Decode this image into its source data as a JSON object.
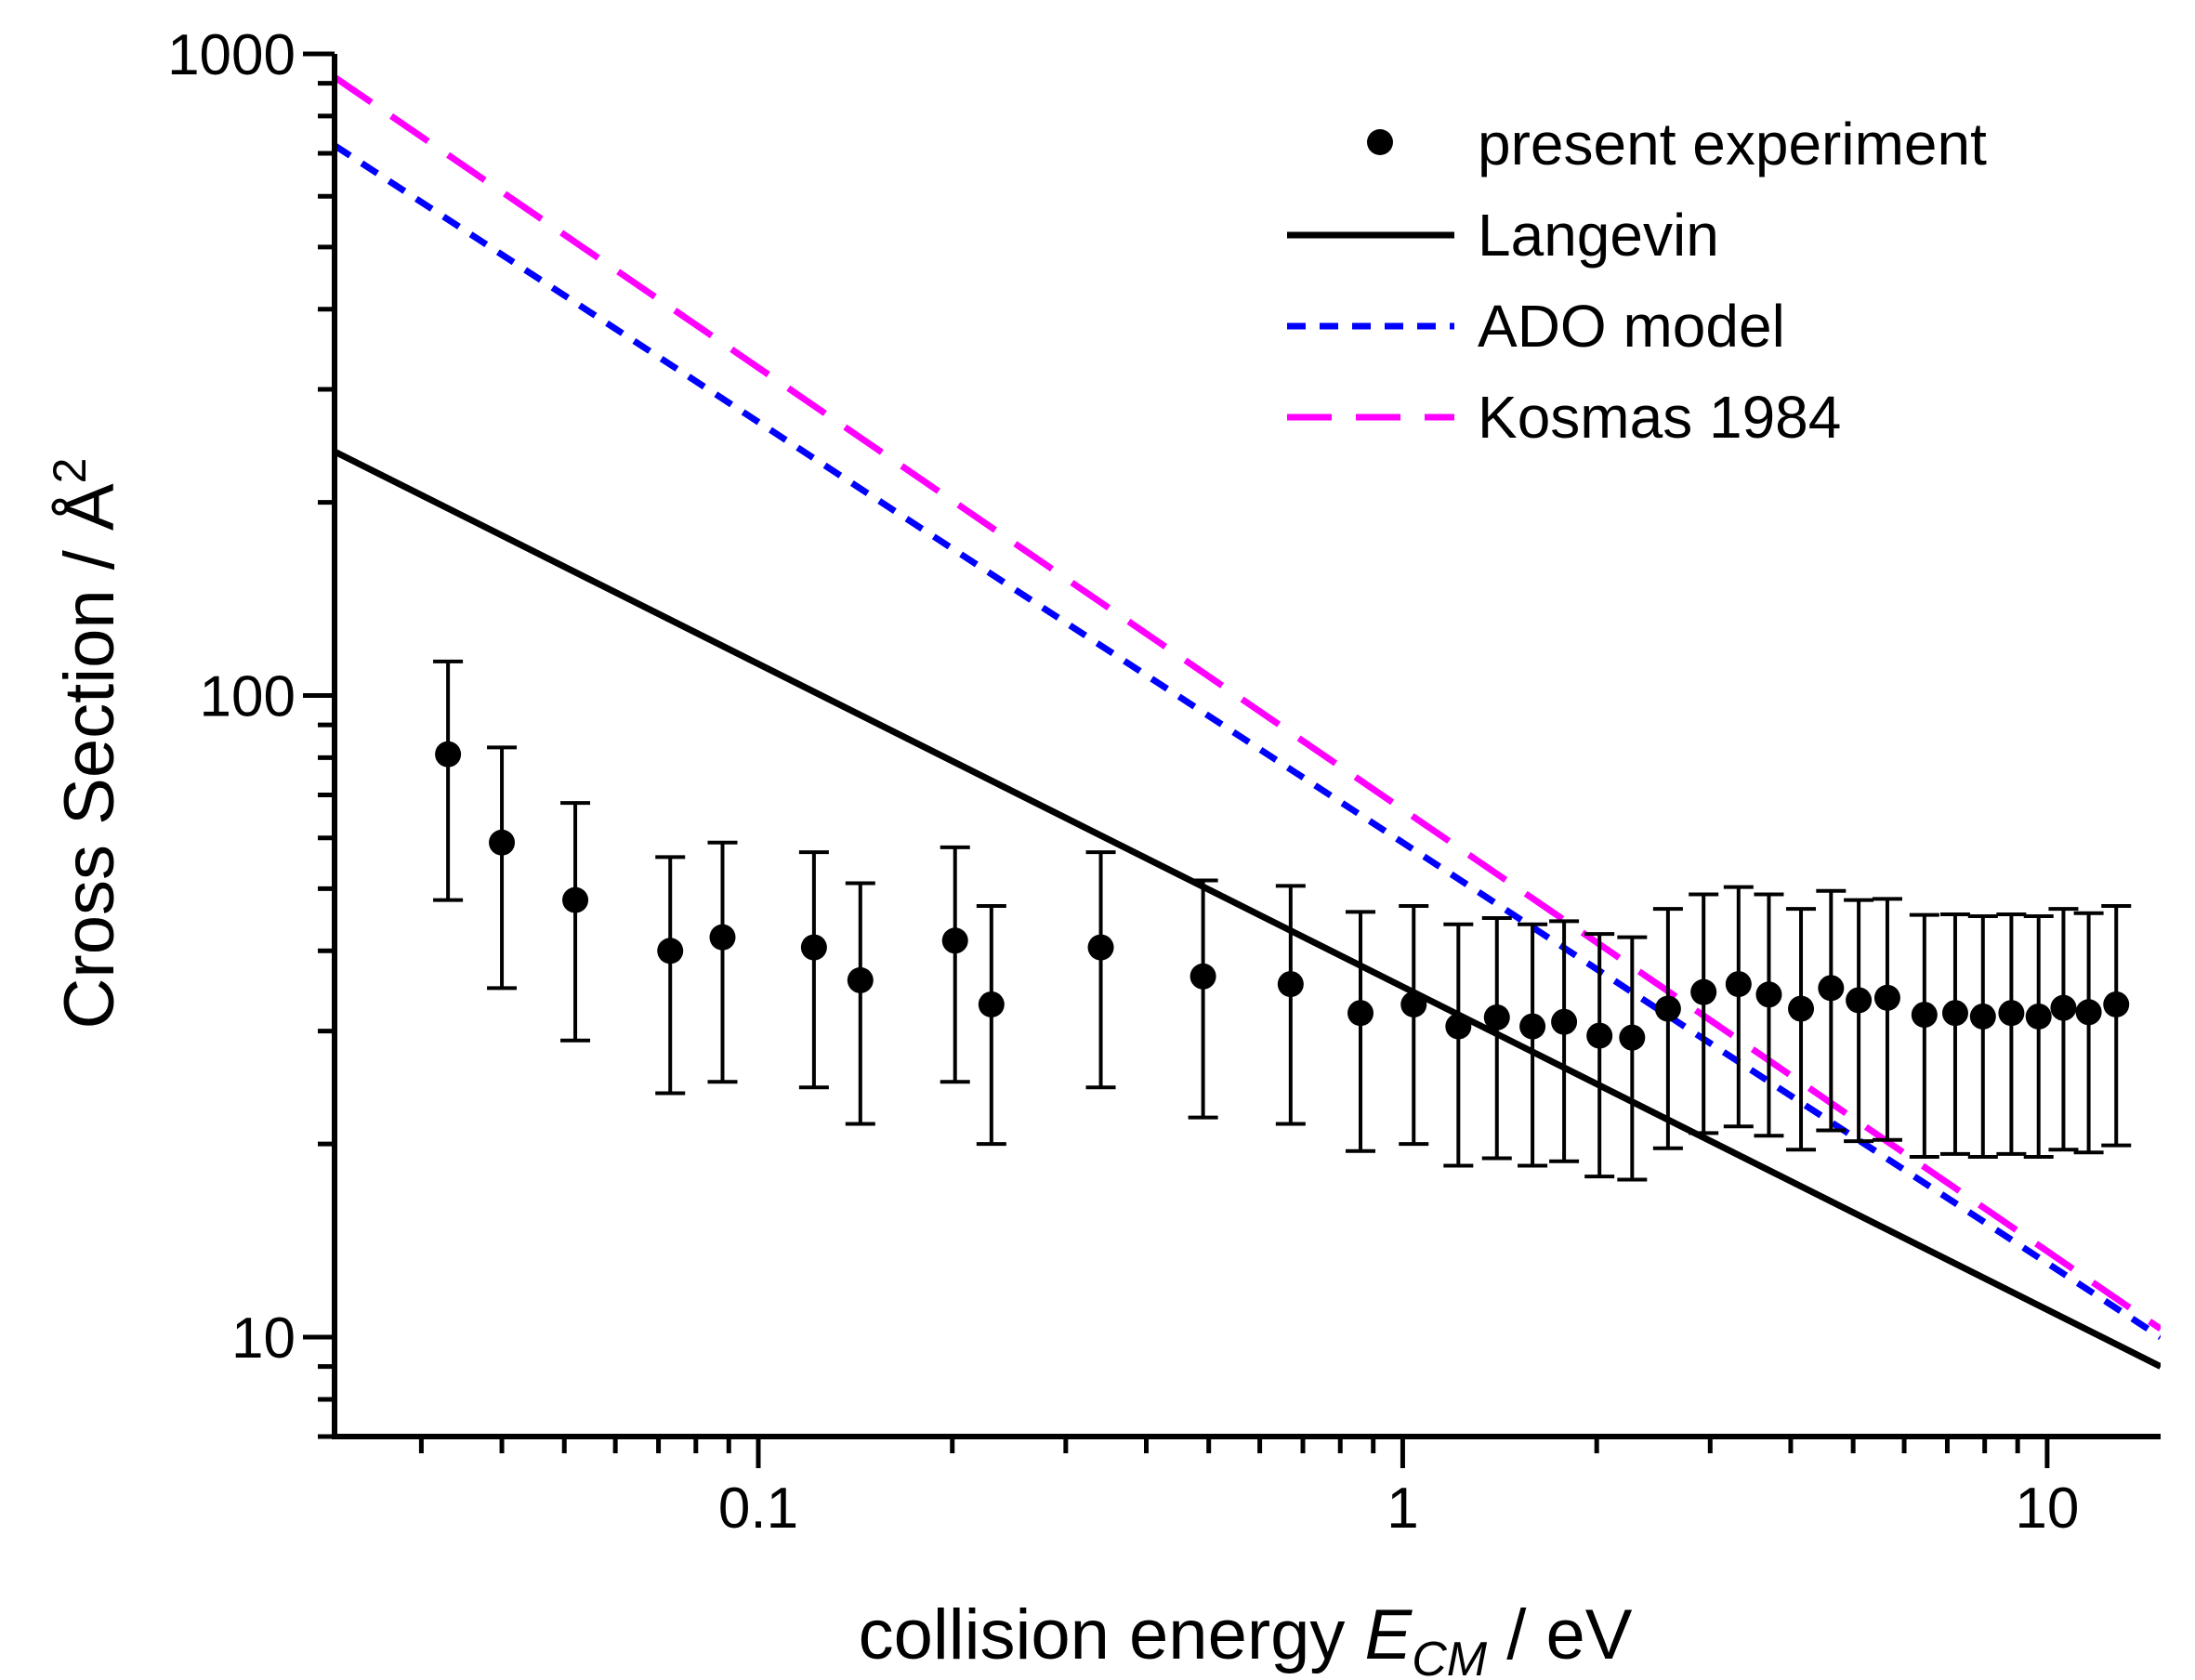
{
  "chart_data": {
    "type": "scatter",
    "title": "",
    "xscale": "log",
    "yscale": "log",
    "xlim": [
      0.022,
      15
    ],
    "ylim": [
      7,
      1000
    ],
    "xlabel": {
      "prefix": "collision energy ",
      "symbol": "E",
      "subscript": "CM",
      "suffix": " / eV"
    },
    "ylabel": {
      "text": "Cross Section / Å",
      "superscript": "2"
    },
    "x_ticks": [
      {
        "value": 0.1,
        "label": "0.1"
      },
      {
        "value": 1,
        "label": "1"
      },
      {
        "value": 10,
        "label": "10"
      }
    ],
    "y_ticks": [
      {
        "value": 10,
        "label": "10"
      },
      {
        "value": 100,
        "label": "100"
      },
      {
        "value": 1000,
        "label": "1000"
      }
    ],
    "legend": {
      "position": "top-right",
      "entries": [
        {
          "label": "present experiment",
          "kind": "marker",
          "color": "#000000"
        },
        {
          "label": "Langevin",
          "kind": "line",
          "color": "#000000",
          "dash": "solid"
        },
        {
          "label": "ADO model",
          "kind": "line",
          "color": "#0000ff",
          "dash": "short"
        },
        {
          "label": "Kosmas 1984",
          "kind": "line",
          "color": "#ff00ff",
          "dash": "long"
        }
      ]
    },
    "series": [
      {
        "name": "present experiment",
        "kind": "points_with_error",
        "color": "#000000",
        "points": [
          {
            "x": 0.033,
            "y": 81,
            "ylo": 48,
            "yhi": 113
          },
          {
            "x": 0.04,
            "y": 59,
            "ylo": 35,
            "yhi": 83
          },
          {
            "x": 0.052,
            "y": 48,
            "ylo": 29,
            "yhi": 68
          },
          {
            "x": 0.073,
            "y": 40,
            "ylo": 24,
            "yhi": 56
          },
          {
            "x": 0.088,
            "y": 42,
            "ylo": 25,
            "yhi": 59
          },
          {
            "x": 0.122,
            "y": 40.5,
            "ylo": 24.5,
            "yhi": 57
          },
          {
            "x": 0.144,
            "y": 36,
            "ylo": 21.5,
            "yhi": 51
          },
          {
            "x": 0.202,
            "y": 41.5,
            "ylo": 25,
            "yhi": 58
          },
          {
            "x": 0.23,
            "y": 33,
            "ylo": 20,
            "yhi": 47
          },
          {
            "x": 0.34,
            "y": 40.5,
            "ylo": 24.5,
            "yhi": 57
          },
          {
            "x": 0.49,
            "y": 36.5,
            "ylo": 22,
            "yhi": 51.5
          },
          {
            "x": 0.67,
            "y": 35.5,
            "ylo": 21.5,
            "yhi": 50.5
          },
          {
            "x": 0.86,
            "y": 32,
            "ylo": 19.5,
            "yhi": 46
          },
          {
            "x": 1.04,
            "y": 33,
            "ylo": 20,
            "yhi": 47
          },
          {
            "x": 1.22,
            "y": 30.5,
            "ylo": 18.5,
            "yhi": 44
          },
          {
            "x": 1.4,
            "y": 31.5,
            "ylo": 19,
            "yhi": 45
          },
          {
            "x": 1.59,
            "y": 30.5,
            "ylo": 18.5,
            "yhi": 44
          },
          {
            "x": 1.78,
            "y": 31,
            "ylo": 18.8,
            "yhi": 44.5
          },
          {
            "x": 2.02,
            "y": 29.5,
            "ylo": 17.8,
            "yhi": 42.5
          },
          {
            "x": 2.27,
            "y": 29.3,
            "ylo": 17.6,
            "yhi": 42
          },
          {
            "x": 2.58,
            "y": 32.5,
            "ylo": 19.7,
            "yhi": 46.5
          },
          {
            "x": 2.93,
            "y": 34.5,
            "ylo": 20.8,
            "yhi": 49
          },
          {
            "x": 3.32,
            "y": 35.5,
            "ylo": 21.3,
            "yhi": 50.3
          },
          {
            "x": 3.7,
            "y": 34.2,
            "ylo": 20.6,
            "yhi": 49
          },
          {
            "x": 4.15,
            "y": 32.5,
            "ylo": 19.6,
            "yhi": 46.5
          },
          {
            "x": 4.62,
            "y": 35,
            "ylo": 21,
            "yhi": 49.6
          },
          {
            "x": 5.1,
            "y": 33.5,
            "ylo": 20.2,
            "yhi": 48
          },
          {
            "x": 5.65,
            "y": 33.8,
            "ylo": 20.3,
            "yhi": 48.2
          },
          {
            "x": 6.45,
            "y": 31.8,
            "ylo": 19.1,
            "yhi": 45.5
          },
          {
            "x": 7.2,
            "y": 32,
            "ylo": 19.3,
            "yhi": 45.6
          },
          {
            "x": 7.95,
            "y": 31.6,
            "ylo": 19.1,
            "yhi": 45.3
          },
          {
            "x": 8.8,
            "y": 32,
            "ylo": 19.3,
            "yhi": 45.6
          },
          {
            "x": 9.7,
            "y": 31.6,
            "ylo": 19.1,
            "yhi": 45.3
          },
          {
            "x": 10.6,
            "y": 32.6,
            "ylo": 19.6,
            "yhi": 46.5
          },
          {
            "x": 11.6,
            "y": 32.1,
            "ylo": 19.4,
            "yhi": 45.8
          },
          {
            "x": 12.8,
            "y": 33,
            "ylo": 19.9,
            "yhi": 47
          }
        ]
      },
      {
        "name": "Langevin",
        "kind": "line",
        "color": "#000000",
        "dash": "solid",
        "x": [
          0.022,
          15
        ],
        "y": [
          240,
          9
        ]
      },
      {
        "name": "ADO model",
        "kind": "line",
        "color": "#0000ff",
        "dash": "short",
        "x": [
          0.022,
          15
        ],
        "y": [
          720,
          10
        ]
      },
      {
        "name": "Kosmas 1984",
        "kind": "line",
        "color": "#ff00ff",
        "dash": "long",
        "x": [
          0.022,
          15
        ],
        "y": [
          920,
          10.3
        ]
      }
    ]
  }
}
